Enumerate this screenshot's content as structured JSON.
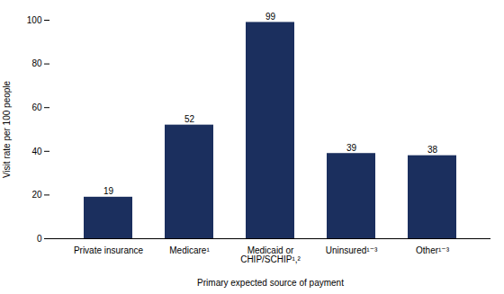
{
  "chart_data": {
    "type": "bar",
    "categories": [
      "Private insurance",
      "Medicare¹",
      "Medicaid or\nCHIP/SCHIP¹,²",
      "Uninsured¹⁻³",
      "Other¹⁻³"
    ],
    "values": [
      19,
      52,
      99,
      39,
      38
    ],
    "color": "#1b2f5e",
    "xlabel": "Primary expected source of payment",
    "ylabel": "Visit rate per 100 people",
    "ylim": [
      0,
      100
    ],
    "yticks": [
      0,
      20,
      40,
      60,
      80,
      100
    ],
    "grid": false,
    "data_labels": true
  }
}
